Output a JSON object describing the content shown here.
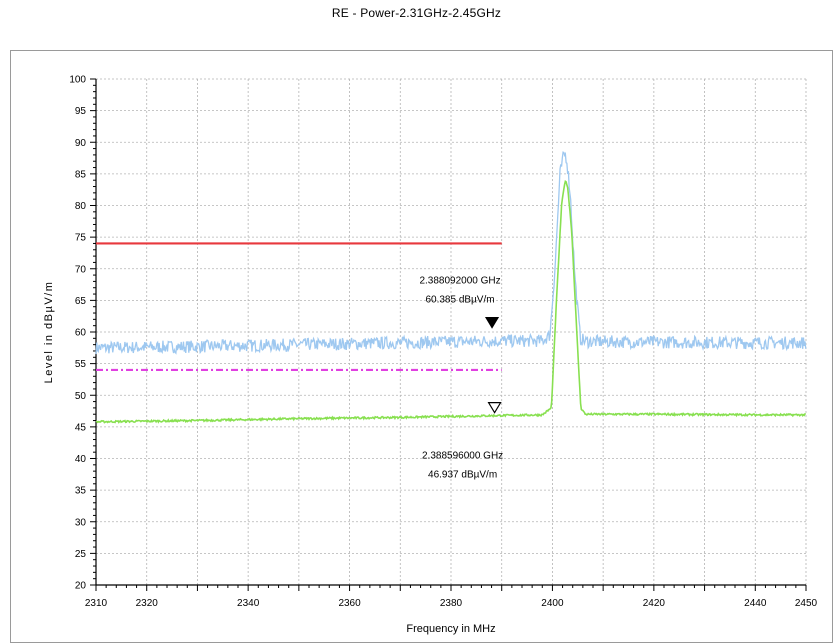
{
  "chart_data": {
    "type": "line",
    "title": "RE - Power-2.31GHz-2.45GHz",
    "xlabel": "Frequency in MHz",
    "ylabel": "Level in dBµV/m",
    "xlim": [
      2310,
      2450
    ],
    "ylim": [
      20,
      100
    ],
    "x_ticks": [
      2310,
      2320,
      2340,
      2360,
      2380,
      2400,
      2420,
      2440,
      2450
    ],
    "y_ticks": [
      20,
      25,
      30,
      35,
      40,
      45,
      50,
      55,
      60,
      65,
      70,
      75,
      80,
      85,
      90,
      95,
      100
    ],
    "grid": true,
    "series": [
      {
        "color": "#9ec8f0",
        "x": [
          2310,
          2330,
          2350,
          2370,
          2390,
          2398,
          2399.5,
          2400.5,
          2401.5,
          2402.3,
          2402.8,
          2403.5,
          2404.5,
          2405.5,
          2406.5,
          2420,
          2440,
          2450
        ],
        "y": [
          57.5,
          57.7,
          58.0,
          58.3,
          58.6,
          58.6,
          59.5,
          70.0,
          85.0,
          88.3,
          87.5,
          82.0,
          68.0,
          59.0,
          58.5,
          58.4,
          58.3,
          58.3
        ]
      },
      {
        "color": "#88e050",
        "x": [
          2310,
          2330,
          2350,
          2370,
          2390,
          2398,
          2399.8,
          2400.8,
          2401.8,
          2402.5,
          2403.0,
          2403.8,
          2404.8,
          2405.6,
          2406.5,
          2420,
          2440,
          2450
        ],
        "y": [
          45.8,
          46.0,
          46.3,
          46.5,
          46.8,
          46.9,
          48.0,
          65.0,
          80.0,
          84.0,
          83.0,
          76.0,
          60.0,
          48.0,
          47.0,
          47.0,
          46.9,
          46.9
        ]
      }
    ],
    "limit_lines": [
      {
        "color": "#e8383d",
        "style": "solid",
        "x": [
          2310,
          2390
        ],
        "y": 74
      },
      {
        "color": "#e040e0",
        "style": "dashdot",
        "x": [
          2310,
          2390
        ],
        "y": 54
      }
    ],
    "markers": [
      {
        "type": "filled",
        "x": 2388.092,
        "y": 60.385,
        "freq_text": "2.388092000 GHz",
        "level_text": "60.385 dBµV/m"
      },
      {
        "type": "hollow",
        "x": 2388.596,
        "y": 46.937,
        "freq_text": "2.388596000 GHz",
        "level_text": "46.937 dBµV/m"
      }
    ]
  }
}
